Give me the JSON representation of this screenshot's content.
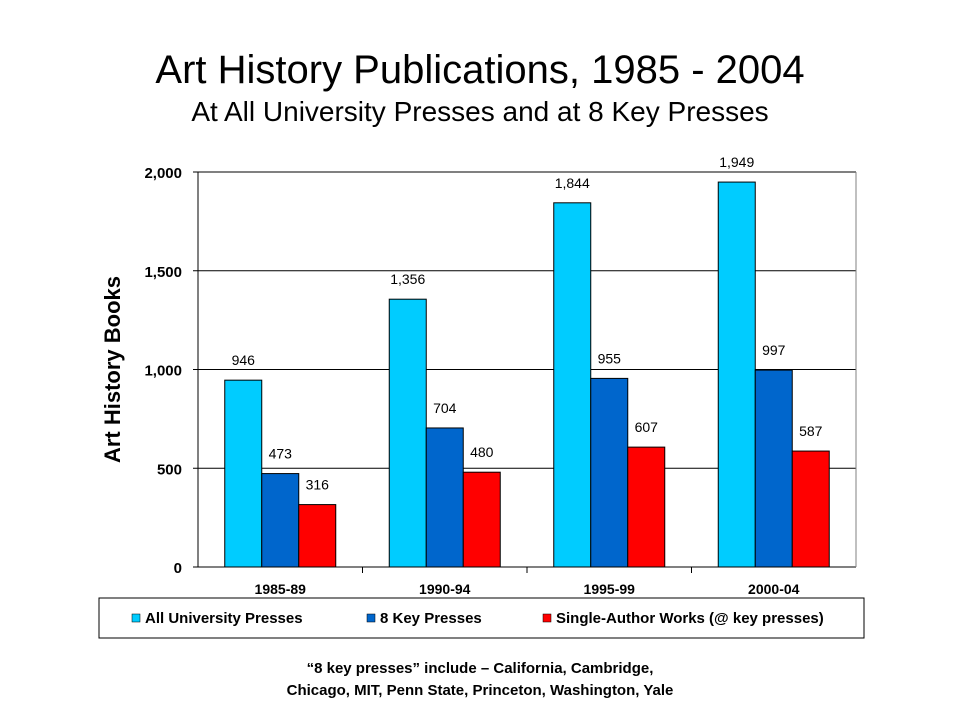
{
  "slide": {
    "title": "Art History Publications, 1985 - 2004",
    "subtitle": "At All University Presses and at 8 Key Presses",
    "footnote_line1": "“8 key presses” include – California, Cambridge,",
    "footnote_line2": "Chicago, MIT, Penn State, Princeton, Washington, Yale"
  },
  "chart_data": {
    "type": "bar",
    "title": "Art History Publications, 1985 - 2004",
    "subtitle": "At All University Presses and at 8 Key Presses",
    "xlabel": "",
    "ylabel": "Art History Books",
    "ylim": [
      0,
      2000
    ],
    "yticks": [
      0,
      500,
      1000,
      1500,
      2000
    ],
    "ytick_labels": [
      "0",
      "500",
      "1,000",
      "1,500",
      "2,000"
    ],
    "grid": true,
    "legend_position": "bottom",
    "categories": [
      "1985-89",
      "1990-94",
      "1995-99",
      "2000-04"
    ],
    "series": [
      {
        "name": "All University Presses",
        "color": "#00CCFF",
        "values": [
          946,
          1356,
          1844,
          1949
        ],
        "labels": [
          "946",
          "1,356",
          "1,844",
          "1,949"
        ]
      },
      {
        "name": "8 Key Presses",
        "color": "#0066CC",
        "values": [
          473,
          704,
          955,
          997
        ],
        "labels": [
          "473",
          "704",
          "955",
          "997"
        ]
      },
      {
        "name": "Single-Author Works (@ key presses)",
        "color": "#FF0000",
        "values": [
          316,
          480,
          607,
          587
        ],
        "labels": [
          "316",
          "480",
          "607",
          "587"
        ]
      }
    ]
  }
}
